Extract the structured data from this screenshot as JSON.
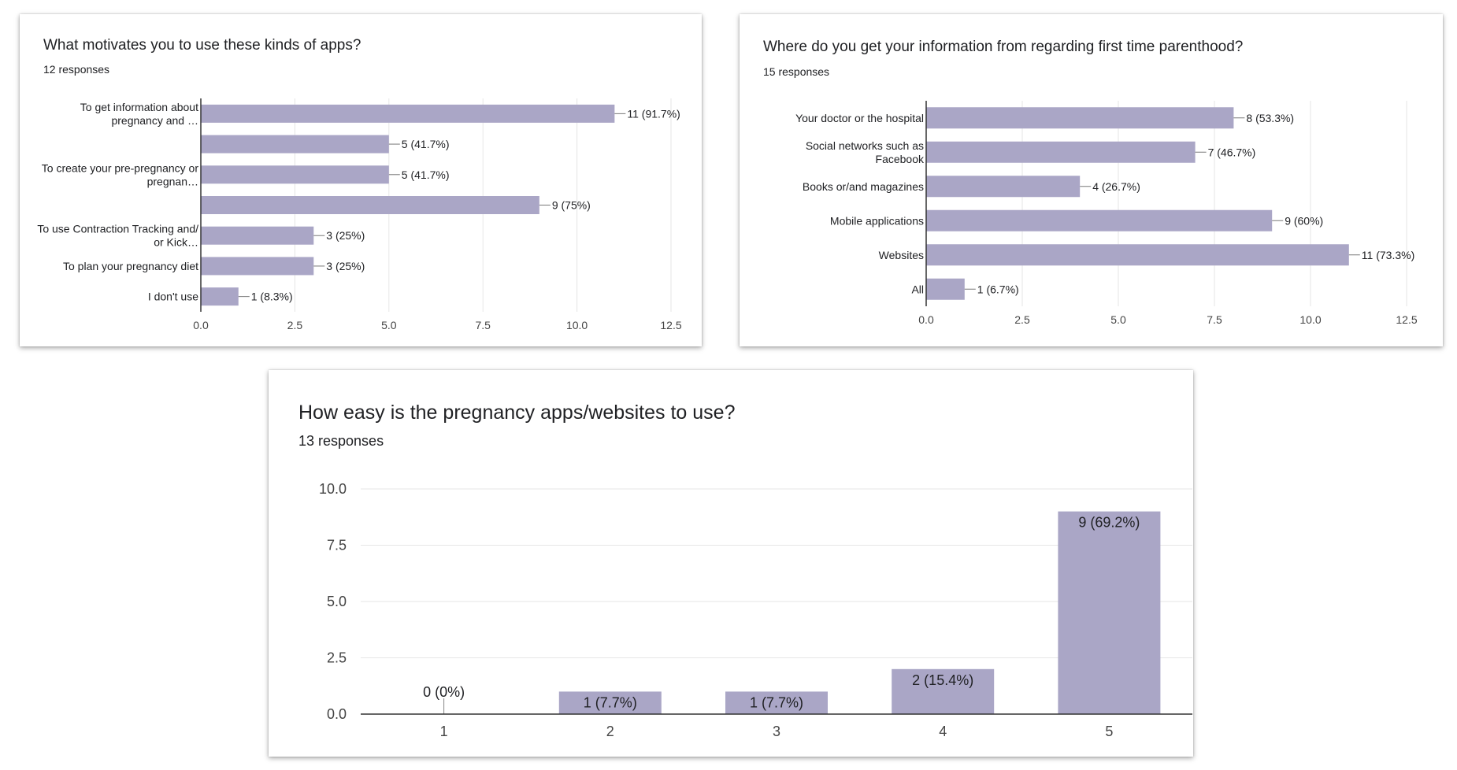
{
  "colors": {
    "bar": "#aaa6c6",
    "grid": "#e6e6e6",
    "axis": "#333333"
  },
  "chart_data": [
    {
      "type": "bar",
      "orientation": "horizontal",
      "title": "What motivates you to use these kinds of apps?",
      "subtitle": "12 responses",
      "categories": [
        [
          "To get information about",
          "pregnancy and …"
        ],
        [],
        [
          "To create your pre-pregnancy or",
          "pregnan…"
        ],
        [],
        [
          "To use Contraction Tracking and/",
          "or Kick…"
        ],
        [
          "To plan your pregnancy diet"
        ],
        [
          "I don't use"
        ]
      ],
      "values": [
        11,
        5,
        5,
        9,
        3,
        3,
        1
      ],
      "data_labels": [
        "11 (91.7%)",
        "5 (41.7%)",
        "5 (41.7%)",
        "9 (75%)",
        "3 (25%)",
        "3 (25%)",
        "1 (8.3%)"
      ],
      "xlim": [
        0,
        12.5
      ],
      "ticks": [
        "0.0",
        "2.5",
        "5.0",
        "7.5",
        "10.0",
        "12.5"
      ],
      "grid": true
    },
    {
      "type": "bar",
      "orientation": "horizontal",
      "title": "Where do you get your information from regarding first time parenthood?",
      "subtitle": "15 responses",
      "categories": [
        [
          "Your doctor or the hospital"
        ],
        [
          "Social networks such as",
          "Facebook"
        ],
        [
          "Books or/and magazines"
        ],
        [
          "Mobile applications"
        ],
        [
          "Websites"
        ],
        [
          "All"
        ]
      ],
      "values": [
        8,
        7,
        4,
        9,
        11,
        1
      ],
      "data_labels": [
        "8 (53.3%)",
        "7 (46.7%)",
        "4 (26.7%)",
        "9 (60%)",
        "11 (73.3%)",
        "1 (6.7%)"
      ],
      "xlim": [
        0,
        12.5
      ],
      "ticks": [
        "0.0",
        "2.5",
        "5.0",
        "7.5",
        "10.0",
        "12.5"
      ],
      "grid": true
    },
    {
      "type": "bar",
      "orientation": "vertical",
      "title": "How easy is the pregnancy apps/websites to use?",
      "subtitle": "13 responses",
      "categories": [
        "1",
        "2",
        "3",
        "4",
        "5"
      ],
      "values": [
        0,
        1,
        1,
        2,
        9
      ],
      "data_labels": [
        "0 (0%)",
        "1 (7.7%)",
        "1 (7.7%)",
        "2 (15.4%)",
        "9 (69.2%)"
      ],
      "ylim": [
        0,
        10
      ],
      "ticks": [
        "0.0",
        "2.5",
        "5.0",
        "7.5",
        "10.0"
      ],
      "grid": true
    }
  ]
}
